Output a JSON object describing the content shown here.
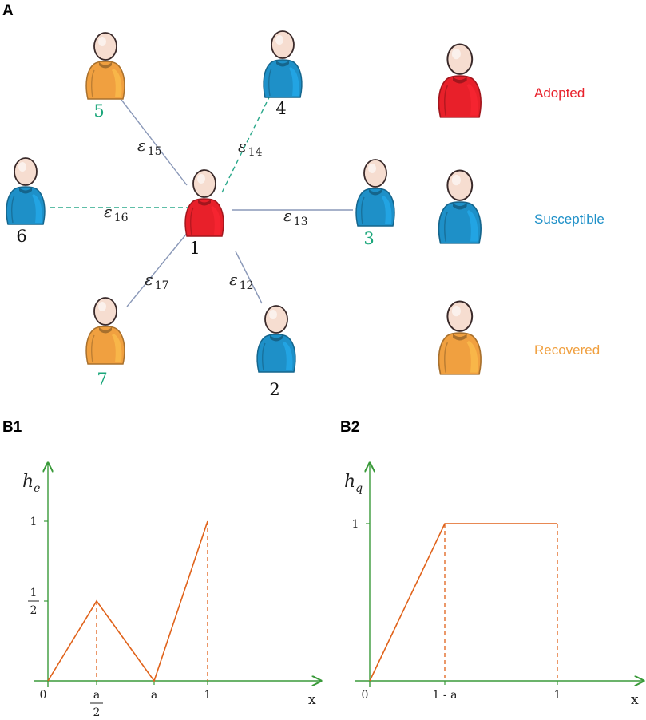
{
  "panels": {
    "a": "A",
    "b1": "B1",
    "b2": "B2"
  },
  "colors": {
    "adopted": "#e8202a",
    "susceptible": "#1e90c8",
    "recovered": "#f0a040",
    "node_label_green": "#1aa67a",
    "edge_solid": "#8a98b8",
    "edge_dashed": "#2aa88a",
    "axis": "#3a9a3a",
    "curve": "#e0621a"
  },
  "legend": [
    {
      "state": "adopted",
      "label": "Adopted"
    },
    {
      "state": "susceptible",
      "label": "Susceptible"
    },
    {
      "state": "recovered",
      "label": "Recovered"
    }
  ],
  "nodes": [
    {
      "id": "1",
      "state": "adopted",
      "label_color": "black"
    },
    {
      "id": "2",
      "state": "susceptible",
      "label_color": "black"
    },
    {
      "id": "3",
      "state": "susceptible",
      "label_color": "green"
    },
    {
      "id": "4",
      "state": "susceptible",
      "label_color": "black"
    },
    {
      "id": "5",
      "state": "recovered",
      "label_color": "green"
    },
    {
      "id": "6",
      "state": "susceptible",
      "label_color": "black"
    },
    {
      "id": "7",
      "state": "recovered",
      "label_color": "green"
    }
  ],
  "edges": [
    {
      "from": "1",
      "to": "2",
      "label": "ε",
      "sub": "12",
      "style": "solid"
    },
    {
      "from": "1",
      "to": "3",
      "label": "ε",
      "sub": "13",
      "style": "solid"
    },
    {
      "from": "1",
      "to": "4",
      "label": "ε",
      "sub": "14",
      "style": "dashed"
    },
    {
      "from": "1",
      "to": "5",
      "label": "ε",
      "sub": "15",
      "style": "solid"
    },
    {
      "from": "1",
      "to": "6",
      "label": "ε",
      "sub": "16",
      "style": "dashed"
    },
    {
      "from": "1",
      "to": "7",
      "label": "ε",
      "sub": "17",
      "style": "solid"
    }
  ],
  "chart_data": [
    {
      "type": "line",
      "title": "B1",
      "ylabel": "h",
      "ylabel_sub": "e",
      "xlabel": "x",
      "x_ticks": [
        {
          "value": "0",
          "label": "0"
        },
        {
          "value": "a/2",
          "label_num": "a",
          "label_den": "2"
        },
        {
          "value": "a",
          "label": "a"
        },
        {
          "value": "1",
          "label": "1"
        }
      ],
      "y_ticks": [
        {
          "value": 0.5,
          "label_num": "1",
          "label_den": "2"
        },
        {
          "value": 1,
          "label": "1"
        }
      ],
      "points": [
        {
          "x": "0",
          "y": 0
        },
        {
          "x": "a/2",
          "y": 0.5
        },
        {
          "x": "a",
          "y": 0
        },
        {
          "x": "1",
          "y": 1
        }
      ],
      "dashed_drops": [
        "a/2",
        "1"
      ]
    },
    {
      "type": "line",
      "title": "B2",
      "ylabel": "h",
      "ylabel_sub": "q",
      "xlabel": "x",
      "x_ticks": [
        {
          "value": "0",
          "label": "0"
        },
        {
          "value": "1-a",
          "label": "1 - a"
        },
        {
          "value": "1",
          "label": "1"
        }
      ],
      "y_ticks": [
        {
          "value": 1,
          "label": "1"
        }
      ],
      "points": [
        {
          "x": "0",
          "y": 0
        },
        {
          "x": "1-a",
          "y": 1
        },
        {
          "x": "1",
          "y": 1
        }
      ],
      "dashed_drops": [
        "1-a",
        "1"
      ]
    }
  ]
}
